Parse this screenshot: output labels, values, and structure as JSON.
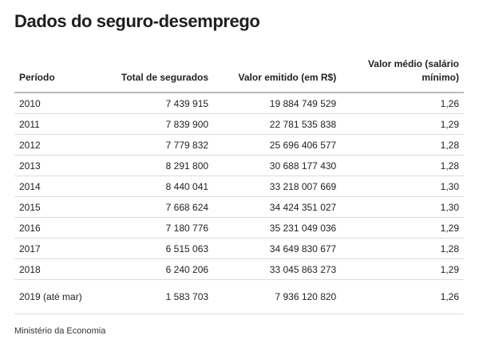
{
  "title": "Dados do seguro-desemprego",
  "table": {
    "headers": {
      "period": "Período",
      "total": "Total de segurados",
      "valor": "Valor emitido (em R$)",
      "medio": "Valor médio (salário mínimo)"
    },
    "rows": [
      {
        "period": "2010",
        "total": "7 439 915",
        "valor": "19 884 749 529",
        "medio": "1,26"
      },
      {
        "period": "2011",
        "total": "7 839 900",
        "valor": "22 781 535 838",
        "medio": "1,29"
      },
      {
        "period": "2012",
        "total": "7 779 832",
        "valor": "25 696 406 577",
        "medio": "1,28"
      },
      {
        "period": "2013",
        "total": "8 291 800",
        "valor": "30 688 177 430",
        "medio": "1,28"
      },
      {
        "period": "2014",
        "total": "8 440 041",
        "valor": "33 218 007 669",
        "medio": "1,30"
      },
      {
        "period": "2015",
        "total": "7 668 624",
        "valor": "34 424 351 027",
        "medio": "1,30"
      },
      {
        "period": "2016",
        "total": "7 180 776",
        "valor": "35 231 049 036",
        "medio": "1,29"
      },
      {
        "period": "2017",
        "total": "6 515 063",
        "valor": "34 649 830 677",
        "medio": "1,28"
      },
      {
        "period": "2018",
        "total": "6 240 206",
        "valor": "33 045 863 273",
        "medio": "1,29"
      },
      {
        "period": "2019 (até mar)",
        "total": "1 583 703",
        "valor": "7 936 120 820",
        "medio": "1,26"
      }
    ]
  },
  "source": "Ministério da Economia"
}
